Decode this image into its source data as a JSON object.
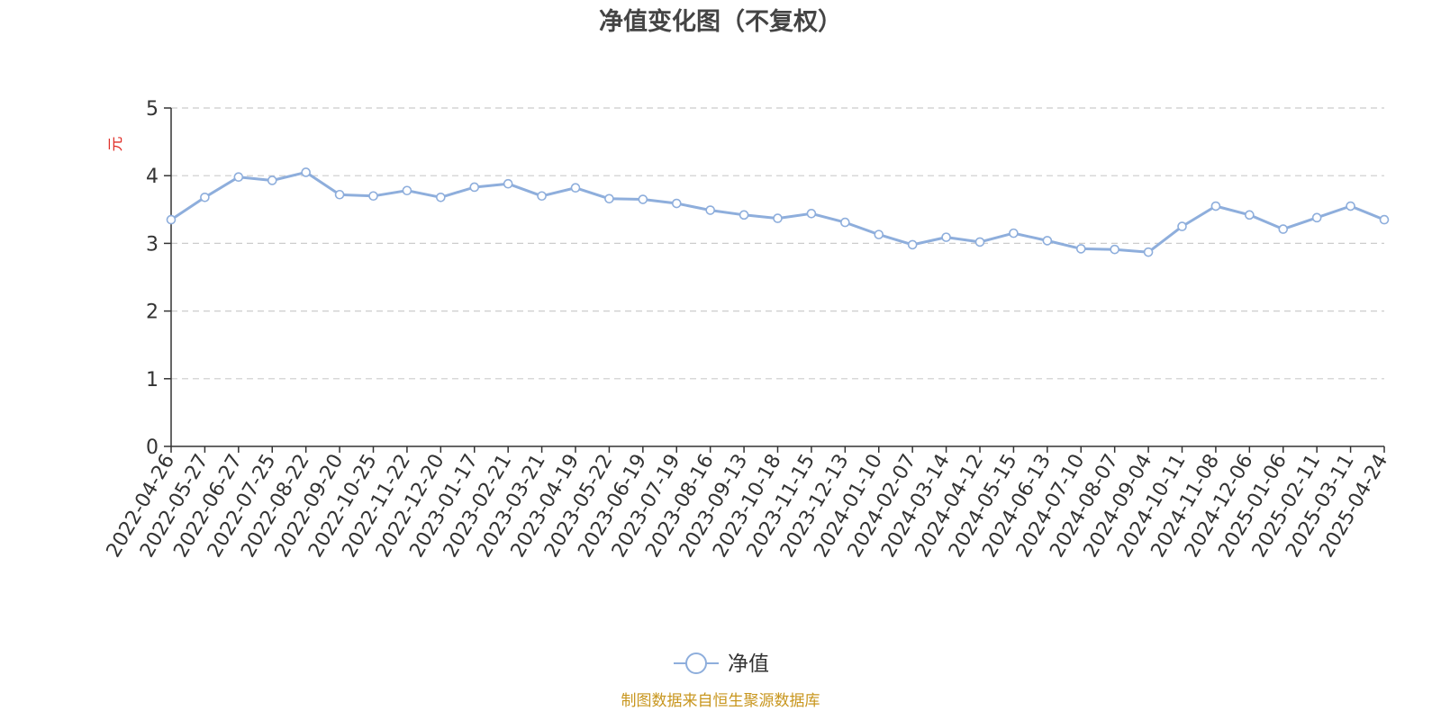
{
  "title": "净值变化图（不复权）",
  "source_note": "制图数据来自恒生聚源数据库",
  "colors": {
    "series": "#8eaedc",
    "grid": "#cccccc",
    "axis": "#333333",
    "unit": "#e0302a",
    "source": "#c8961e"
  },
  "chart_data": {
    "type": "line",
    "title": "净值变化图（不复权）",
    "xlabel": "",
    "ylabel": "元",
    "ylim": [
      0,
      5
    ],
    "yticks": [
      0,
      1,
      2,
      3,
      4,
      5
    ],
    "grid": "horizontal dashed",
    "legend_position": "bottom-center",
    "x_ticks": [
      "2022-04-26",
      "2022-05-27",
      "2022-06-27",
      "2022-07-25",
      "2022-08-22",
      "2022-09-20",
      "2022-10-25",
      "2022-11-22",
      "2022-12-20",
      "2023-01-17",
      "2023-02-21",
      "2023-03-21",
      "2023-04-19",
      "2023-05-22",
      "2023-06-19",
      "2023-07-19",
      "2023-08-16",
      "2023-09-13",
      "2023-10-18",
      "2023-11-15",
      "2023-12-13",
      "2024-01-10",
      "2024-02-07",
      "2024-03-14",
      "2024-04-12",
      "2024-05-15",
      "2024-06-13",
      "2024-07-10",
      "2024-08-07",
      "2024-09-04",
      "2024-10-11",
      "2024-11-08",
      "2024-12-06",
      "2025-01-06",
      "2025-02-11",
      "2025-03-11",
      "2025-04-24"
    ],
    "series": [
      {
        "name": "净值",
        "values": [
          3.35,
          3.68,
          3.98,
          3.93,
          4.05,
          3.72,
          3.7,
          3.78,
          3.68,
          3.83,
          3.88,
          3.7,
          3.82,
          3.66,
          3.65,
          3.59,
          3.49,
          3.42,
          3.37,
          3.44,
          3.31,
          3.13,
          2.98,
          3.09,
          3.02,
          3.15,
          3.04,
          2.92,
          2.91,
          2.87,
          3.25,
          3.55,
          3.42,
          3.21,
          3.38,
          3.55,
          3.35
        ],
        "markers": true
      }
    ]
  }
}
